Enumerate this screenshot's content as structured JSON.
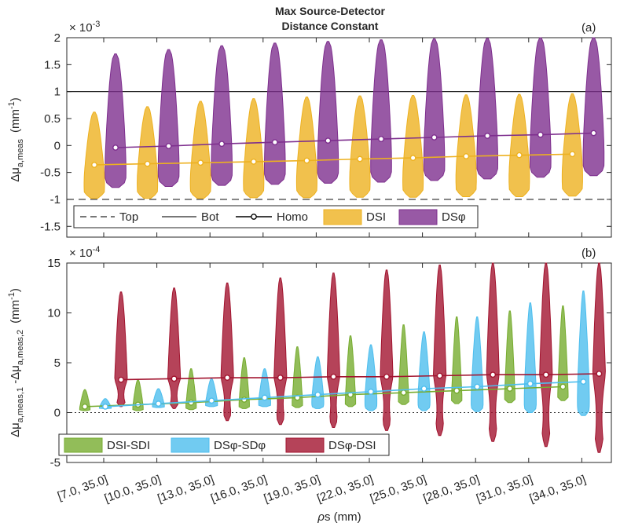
{
  "chart_data": [
    {
      "type": "violin",
      "title_line1": "Max Source-Detector",
      "title_line2": "Distance Constant",
      "panel_label": "(a)",
      "ylabel": "Δμ_a,meas (mm^-1)",
      "ylabel_main": "Δμ",
      "ylabel_sub": "a,meas",
      "ylabel_unit": "(mm",
      "ylabel_unit_exp": "-1",
      "ylabel_unit_close": ")",
      "exponent_prefix": "× 10",
      "exponent": "-3",
      "ylim": [
        -1.7,
        2
      ],
      "yticks": [
        -1.5,
        -1,
        -0.5,
        0,
        0.5,
        1,
        1.5,
        2
      ],
      "ytick_labels": [
        "-1.5",
        "-1",
        "-0.5",
        "0",
        "0.5",
        "1",
        "1.5",
        "2"
      ],
      "reference_lines": {
        "top": -1,
        "bot": 1
      },
      "x_groups": 10,
      "series": [
        {
          "name": "DSI",
          "color": "#EDB120",
          "medians": [
            -0.36,
            -0.34,
            -0.32,
            -0.3,
            -0.28,
            -0.25,
            -0.23,
            -0.2,
            -0.18,
            -0.16
          ],
          "upper": [
            0.62,
            0.72,
            0.82,
            0.87,
            0.9,
            0.92,
            0.93,
            0.94,
            0.95,
            0.96
          ],
          "lower": [
            -0.98,
            -0.98,
            -0.98,
            -0.97,
            -0.97,
            -0.96,
            -0.96,
            -0.95,
            -0.95,
            -0.94
          ]
        },
        {
          "name": "DSφ",
          "color": "#7E2F8E",
          "medians": [
            -0.04,
            -0.01,
            0.03,
            0.06,
            0.09,
            0.12,
            0.15,
            0.18,
            0.2,
            0.23
          ],
          "upper": [
            1.7,
            1.78,
            1.85,
            1.9,
            1.93,
            1.96,
            1.98,
            1.99,
            2.0,
            2.0
          ],
          "lower": [
            -0.78,
            -0.76,
            -0.74,
            -0.72,
            -0.7,
            -0.68,
            -0.65,
            -0.62,
            -0.59,
            -0.56
          ]
        }
      ],
      "legend": [
        "Top",
        "Bot",
        "Homo",
        "DSI",
        "DSφ"
      ]
    },
    {
      "type": "violin",
      "panel_label": "(b)",
      "ylabel": "Δμ_a,meas,1 - Δμ_a,meas,2 (mm^-1)",
      "ylabel_a": "Δμ",
      "ylabel_a_sub": "a,meas,1",
      "ylabel_mid": " -Δμ",
      "ylabel_b_sub": "a,meas,2",
      "ylabel_unit": "(mm",
      "ylabel_unit_exp": "-1",
      "ylabel_unit_close": ")",
      "exponent_prefix": "× 10",
      "exponent": "-4",
      "ylim": [
        -5,
        15
      ],
      "yticks": [
        -5,
        0,
        5,
        10,
        15
      ],
      "ytick_labels": [
        "-5",
        "0",
        "5",
        "10",
        "15"
      ],
      "xlabel": "ρs (mm)",
      "xlabel_rho": "ρ",
      "xlabel_rest": "s (mm)",
      "categories": [
        "[7.0, 35.0]",
        "[10.0, 35.0]",
        "[13.0, 35.0]",
        "[16.0, 35.0]",
        "[19.0, 35.0]",
        "[22.0, 35.0]",
        "[25.0, 35.0]",
        "[28.0, 35.0]",
        "[31.0, 35.0]",
        "[34.0, 35.0]"
      ],
      "series": [
        {
          "name": "DSI-SDI",
          "color": "#77AC30",
          "medians": [
            0.6,
            0.8,
            1.0,
            1.3,
            1.5,
            1.8,
            2.0,
            2.2,
            2.4,
            2.6
          ],
          "upper": [
            2.3,
            3.3,
            4.4,
            5.5,
            6.6,
            7.7,
            8.8,
            9.6,
            10.2,
            10.7
          ],
          "lower": [
            0.2,
            0.2,
            0.3,
            0.4,
            0.5,
            0.6,
            0.8,
            0.9,
            1.0,
            1.2
          ]
        },
        {
          "name": "DSφ-SDφ",
          "color": "#4DBEEE",
          "medians": [
            0.6,
            0.9,
            1.2,
            1.5,
            1.8,
            2.1,
            2.4,
            2.6,
            2.9,
            3.1
          ],
          "upper": [
            1.4,
            2.4,
            3.4,
            4.4,
            5.6,
            6.8,
            8.1,
            9.6,
            11.0,
            12.2
          ],
          "lower": [
            0.4,
            0.5,
            0.6,
            0.6,
            0.4,
            0.2,
            0.2,
            0.1,
            0.0,
            -0.3
          ]
        },
        {
          "name": "DSφ-DSI",
          "color": "#A2142F",
          "medians": [
            3.3,
            3.4,
            3.5,
            3.5,
            3.6,
            3.6,
            3.7,
            3.8,
            3.8,
            3.9
          ],
          "upper": [
            12.1,
            12.5,
            13.0,
            13.5,
            14.0,
            14.3,
            14.8,
            15.0,
            15.0,
            15.0
          ],
          "lower": [
            0.6,
            0.4,
            -0.8,
            -1.2,
            -1.5,
            -1.8,
            -2.3,
            -2.9,
            -3.4,
            -4.0
          ]
        }
      ],
      "legend": [
        "DSI-SDI",
        "DSφ-SDφ",
        "DSφ-DSI"
      ]
    }
  ]
}
